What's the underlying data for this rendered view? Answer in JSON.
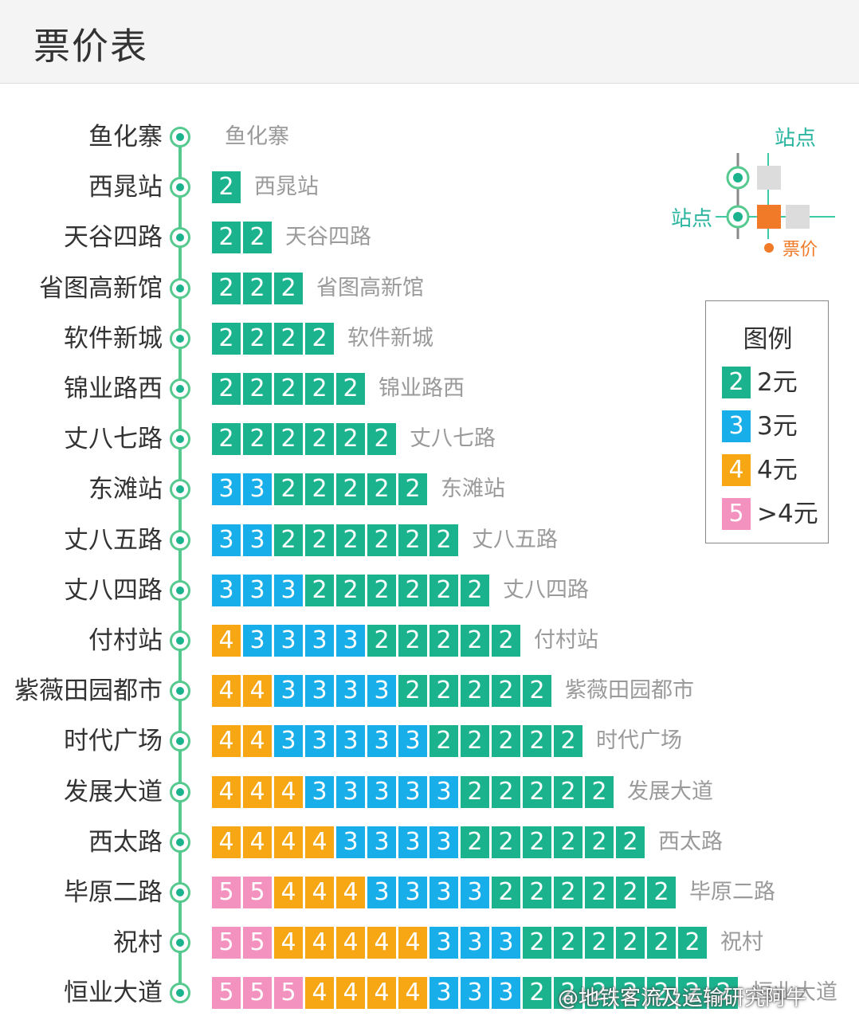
{
  "header": {
    "title": "票价表"
  },
  "chart_data": {
    "type": "table",
    "title": "票价表",
    "stations": [
      "鱼化寨",
      "西晁站",
      "天谷四路",
      "省图高新馆",
      "软件新城",
      "锦业路西",
      "丈八七路",
      "东滩站",
      "丈八五路",
      "丈八四路",
      "付村站",
      "紫薇田园都市",
      "时代广场",
      "发展大道",
      "西太路",
      "毕原二路",
      "祝村",
      "恒业大道"
    ],
    "fares": [
      [],
      [
        2
      ],
      [
        2,
        2
      ],
      [
        2,
        2,
        2
      ],
      [
        2,
        2,
        2,
        2
      ],
      [
        2,
        2,
        2,
        2,
        2
      ],
      [
        2,
        2,
        2,
        2,
        2,
        2
      ],
      [
        3,
        3,
        2,
        2,
        2,
        2,
        2
      ],
      [
        3,
        3,
        2,
        2,
        2,
        2,
        2,
        2
      ],
      [
        3,
        3,
        3,
        2,
        2,
        2,
        2,
        2,
        2
      ],
      [
        4,
        3,
        3,
        3,
        3,
        2,
        2,
        2,
        2,
        2
      ],
      [
        4,
        4,
        3,
        3,
        3,
        3,
        2,
        2,
        2,
        2,
        2
      ],
      [
        4,
        4,
        3,
        3,
        3,
        3,
        3,
        2,
        2,
        2,
        2,
        2
      ],
      [
        4,
        4,
        4,
        3,
        3,
        3,
        3,
        3,
        2,
        2,
        2,
        2,
        2
      ],
      [
        4,
        4,
        4,
        4,
        3,
        3,
        3,
        3,
        2,
        2,
        2,
        2,
        2,
        2
      ],
      [
        5,
        5,
        4,
        4,
        4,
        3,
        3,
        3,
        3,
        2,
        2,
        2,
        2,
        2,
        2
      ],
      [
        5,
        5,
        4,
        4,
        4,
        4,
        4,
        3,
        3,
        3,
        2,
        2,
        2,
        2,
        2,
        2
      ],
      [
        5,
        5,
        5,
        4,
        4,
        4,
        4,
        3,
        3,
        3,
        2,
        2,
        2,
        2,
        2,
        2,
        2
      ]
    ],
    "colors": {
      "2": "#1bb38e",
      "3": "#17aeea",
      "4": "#f7a614",
      "5": "#f391bf"
    }
  },
  "legend": {
    "title": "图例",
    "items": [
      {
        "value": "2",
        "label": "2元",
        "color": "#1bb38e"
      },
      {
        "value": "3",
        "label": "3元",
        "color": "#17aeea"
      },
      {
        "value": "4",
        "label": "4元",
        "color": "#f7a614"
      },
      {
        "value": "5",
        "label": ">4元",
        "color": "#f391bf"
      }
    ]
  },
  "diagram": {
    "station_label_top": "站点",
    "station_label_left": "站点",
    "fare_label": "票价"
  },
  "watermark": "@地铁客流及运输研究阿牛"
}
